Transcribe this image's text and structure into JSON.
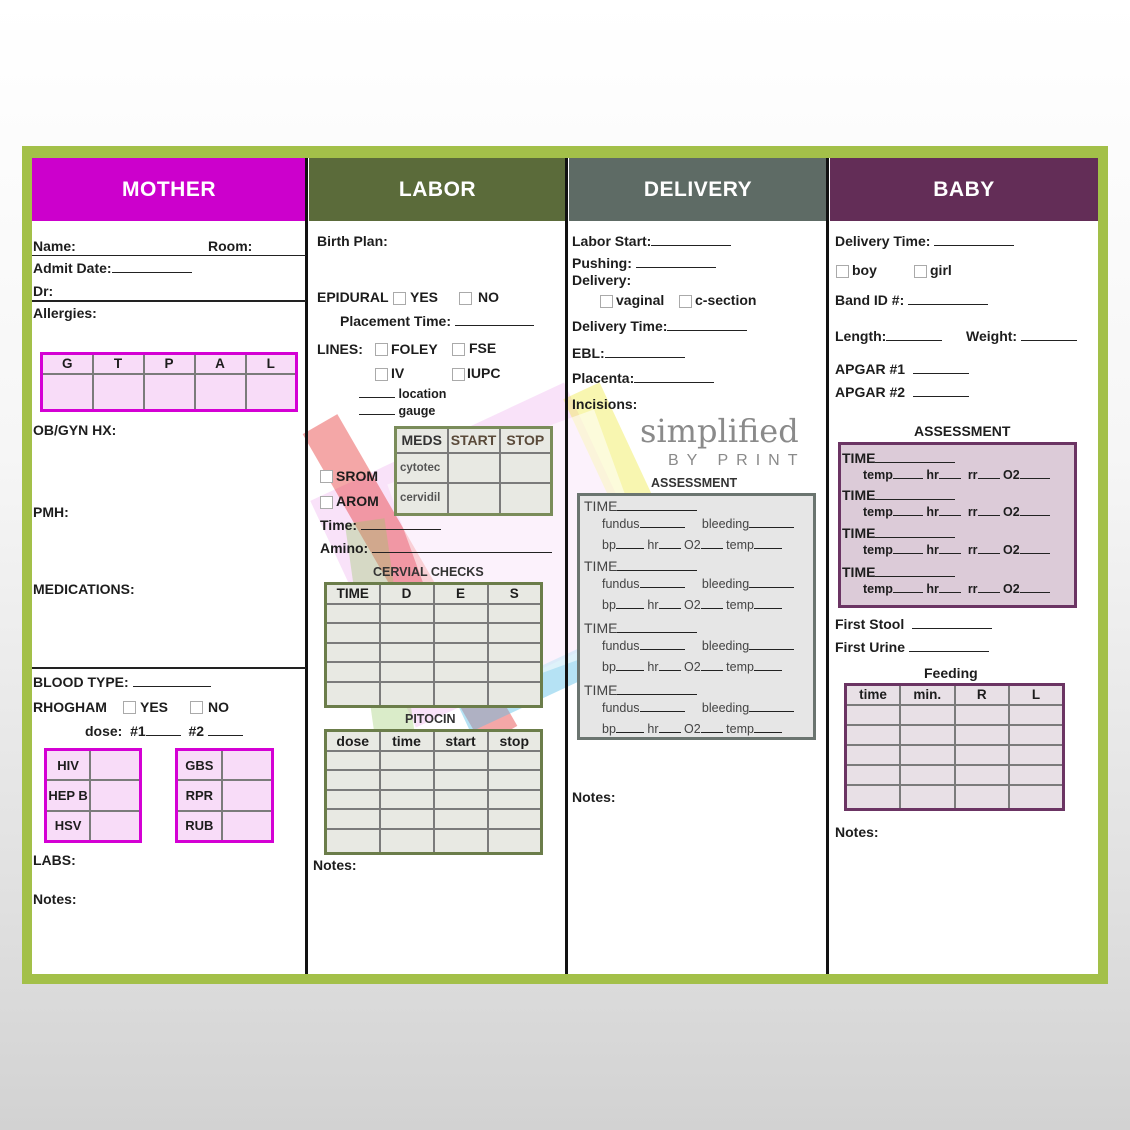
{
  "colors": {
    "frame": "#a3c049",
    "mother": "#cc00cc",
    "labor": "#5b6b3a",
    "delivery": "#5e6b65",
    "baby": "#632d57"
  },
  "headers": {
    "mother": "MOTHER",
    "labor": "LABOR",
    "delivery": "DELIVERY",
    "baby": "BABY"
  },
  "mother": {
    "name": "Name:",
    "room": "Room:",
    "admit": "Admit Date:",
    "dr": "Dr:",
    "allergies": "Allergies:",
    "gtpal": [
      "G",
      "T",
      "P",
      "A",
      "L"
    ],
    "obgyn": "OB/GYN HX:",
    "pmh": "PMH:",
    "medications": "MEDICATIONS:",
    "blood_type": "BLOOD TYPE:",
    "rhogham": "RHOGHAM",
    "yes": "YES",
    "no": "NO",
    "dose": "dose:",
    "dose1": "#1",
    "dose2": "#2",
    "labs_left": [
      "HIV",
      "HEP B",
      "HSV"
    ],
    "labs_right": [
      "GBS",
      "RPR",
      "RUB"
    ],
    "labs": "LABS:",
    "notes": "Notes:"
  },
  "labor": {
    "birth_plan": "Birth Plan:",
    "epidural": "EPIDURAL",
    "yes": "YES",
    "no": "NO",
    "placement": "Placement Time:",
    "lines": "LINES:",
    "foley": "FOLEY",
    "fse": "FSE",
    "iv": "IV",
    "iupc": "IUPC",
    "location": "location",
    "gauge": "gauge",
    "meds_headers": [
      "MEDS",
      "START",
      "STOP"
    ],
    "meds": [
      "cytotec",
      "cervidil"
    ],
    "srom": "SROM",
    "arom": "AROM",
    "time": "Time:",
    "amino": "Amino:",
    "cervical_title": "CERVIAL CHECKS",
    "cervical_headers": [
      "TIME",
      "D",
      "E",
      "S"
    ],
    "pitocin_title": "PITOCIN",
    "pitocin_headers": [
      "dose",
      "time",
      "start",
      "stop"
    ],
    "notes": "Notes:"
  },
  "delivery": {
    "labor_start": "Labor Start:",
    "pushing": "Pushing:",
    "delivery": "Delivery:",
    "vaginal": "vaginal",
    "csection": "c-section",
    "delivery_time": "Delivery Time:",
    "ebl": "EBL:",
    "placenta": "Placenta:",
    "incisions": "Incisions:",
    "assessment": "ASSESSMENT",
    "assessment_fields": {
      "time": "TIME",
      "fundus": "fundus",
      "bleeding": "bleeding",
      "bp": "bp",
      "hr": "hr",
      "o2": "O2",
      "temp": "temp"
    },
    "notes": "Notes:"
  },
  "baby": {
    "delivery_time": "Delivery Time:",
    "boy": "boy",
    "girl": "girl",
    "band": "Band ID #:",
    "length": "Length:",
    "weight": "Weight:",
    "apgar1": "APGAR #1",
    "apgar2": "APGAR #2",
    "assessment": "ASSESSMENT",
    "assessment_fields": {
      "time": "TIME",
      "temp": "temp",
      "hr": "hr",
      "rr": "rr",
      "o2": "O2"
    },
    "first_stool": "First Stool",
    "first_urine": "First Urine",
    "feeding": "Feeding",
    "feeding_headers": [
      "time",
      "min.",
      "R",
      "L"
    ],
    "notes": "Notes:"
  },
  "watermark": {
    "line1": "simplified",
    "line2": "BY PRINT"
  }
}
